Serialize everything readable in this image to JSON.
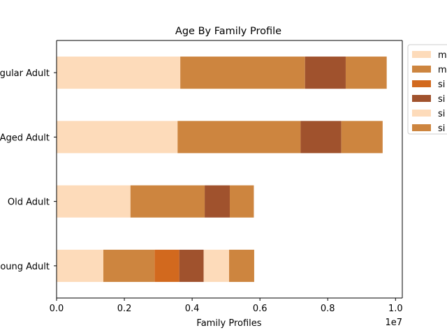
{
  "chart_data": {
    "type": "bar",
    "orientation": "horizontal",
    "stacked": true,
    "title": "Age By Family Profile",
    "xlabel": "Family Profiles",
    "ylabel": "",
    "x_offset_label": "1e7",
    "xlim": [
      0,
      10200000
    ],
    "x_ticks": [
      0,
      2000000,
      4000000,
      6000000,
      8000000,
      10000000
    ],
    "x_tick_labels": [
      "0.0",
      "0.2",
      "0.4",
      "0.6",
      "0.8",
      "1.0"
    ],
    "categories": [
      "Regular Adult",
      "Aged Adult",
      "Old Adult",
      "Young Adult"
    ],
    "category_labels": [
      "gular Adult",
      "Aged Adult",
      "Old Adult",
      "oung Adult"
    ],
    "legend_position": "outside-right",
    "grid": false,
    "series": [
      {
        "name": "m",
        "color": "#FDDBBA",
        "values": [
          3650000,
          3570000,
          2180000,
          1380000
        ]
      },
      {
        "name": "m",
        "color": "#CD853F",
        "values": [
          3680000,
          3630000,
          2190000,
          1510000
        ]
      },
      {
        "name": "si",
        "color": "#D2691E",
        "values": [
          0,
          0,
          0,
          730000
        ]
      },
      {
        "name": "si",
        "color": "#A0522D",
        "values": [
          1200000,
          1200000,
          740000,
          720000
        ]
      },
      {
        "name": "si",
        "color": "#FDDBBA",
        "values": [
          0,
          0,
          0,
          750000
        ]
      },
      {
        "name": "si",
        "color": "#CD853F",
        "values": [
          1210000,
          1220000,
          710000,
          740000
        ]
      }
    ]
  }
}
